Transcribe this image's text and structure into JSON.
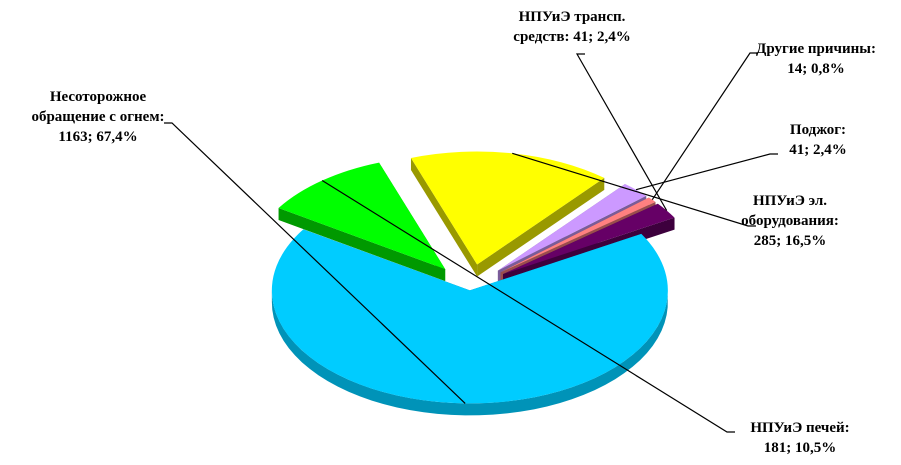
{
  "chart_data": {
    "type": "pie",
    "style": "3d-exploded",
    "title": "",
    "slices": [
      {
        "name": "Несосторожное обращение с огнем",
        "label_lines": [
          "Несоторожное",
          "обращение с огнем:",
          "1163; 67,4%"
        ],
        "value": 1163,
        "percent": 67.4,
        "color": "#00CCFF"
      },
      {
        "name": "НПУиЭ печей",
        "label_lines": [
          "НПУиЭ печей:",
          "181; 10,5%"
        ],
        "value": 181,
        "percent": 10.5,
        "color": "#00FF00"
      },
      {
        "name": "НПУиЭ эл. оборудования",
        "label_lines": [
          "НПУиЭ эл.",
          "оборудования:",
          "285; 16,5%"
        ],
        "value": 285,
        "percent": 16.5,
        "color": "#FFFF00"
      },
      {
        "name": "Поджог",
        "label_lines": [
          "Поджог:",
          "41; 2,4%"
        ],
        "value": 41,
        "percent": 2.4,
        "color": "#CC99FF"
      },
      {
        "name": "Другие причины",
        "label_lines": [
          "Другие причины:",
          "14; 0,8%"
        ],
        "value": 14,
        "percent": 0.8,
        "color": "#FF8080"
      },
      {
        "name": "НПУиЭ трансп. средств",
        "label_lines": [
          "НПУиЭ трансп.",
          "средств: 41; 2,4%"
        ],
        "value": 41,
        "percent": 2.4,
        "color": "#660066"
      }
    ]
  }
}
